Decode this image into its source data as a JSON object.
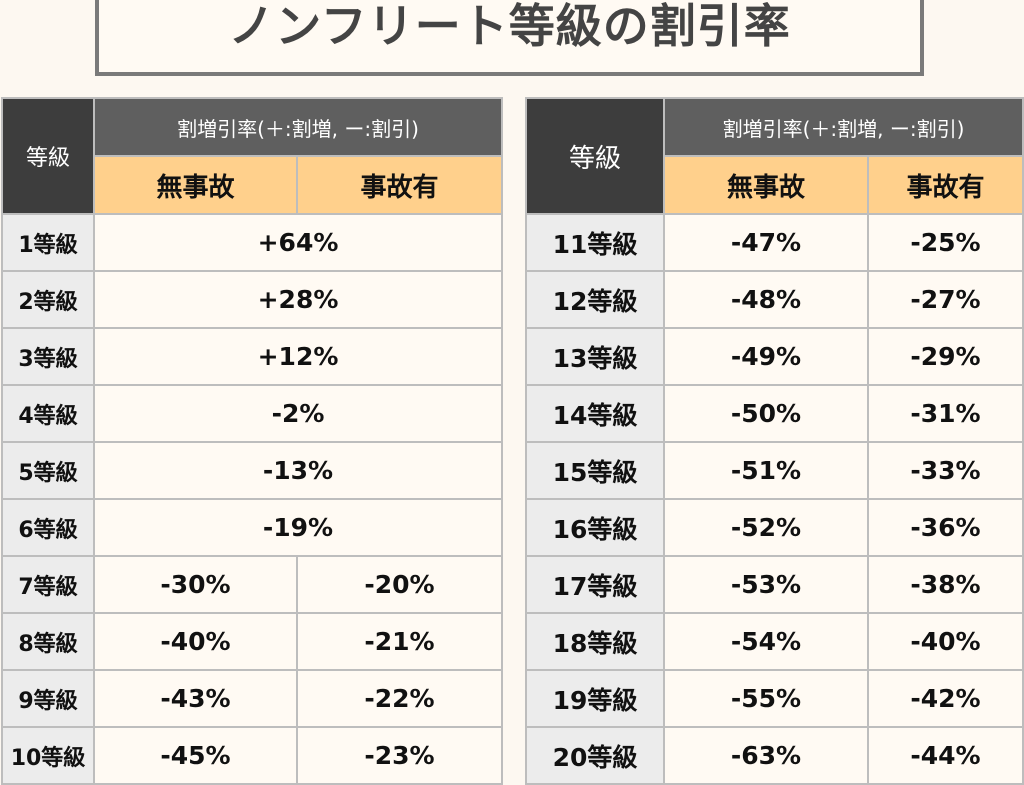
{
  "title": "ノンフリート等級の割引率",
  "header": {
    "grade": "等級",
    "rate": "割増引率(＋:割増, ー:割引)",
    "no_accident": "無事故",
    "accident": "事故有"
  },
  "left_table": [
    {
      "grade": "1等級",
      "rate": "+64%"
    },
    {
      "grade": "2等級",
      "rate": "+28%"
    },
    {
      "grade": "3等級",
      "rate": "+12%"
    },
    {
      "grade": "4等級",
      "rate": "-2%"
    },
    {
      "grade": "5等級",
      "rate": "-13%"
    },
    {
      "grade": "6等級",
      "rate": "-19%"
    },
    {
      "grade": "7等級",
      "no_accident": "-30%",
      "accident": "-20%"
    },
    {
      "grade": "8等級",
      "no_accident": "-40%",
      "accident": "-21%"
    },
    {
      "grade": "9等級",
      "no_accident": "-43%",
      "accident": "-22%"
    },
    {
      "grade": "10等級",
      "no_accident": "-45%",
      "accident": "-23%"
    }
  ],
  "right_table": [
    {
      "grade": "11等級",
      "no_accident": "-47%",
      "accident": "-25%"
    },
    {
      "grade": "12等級",
      "no_accident": "-48%",
      "accident": "-27%"
    },
    {
      "grade": "13等級",
      "no_accident": "-49%",
      "accident": "-29%"
    },
    {
      "grade": "14等級",
      "no_accident": "-50%",
      "accident": "-31%"
    },
    {
      "grade": "15等級",
      "no_accident": "-51%",
      "accident": "-33%"
    },
    {
      "grade": "16等級",
      "no_accident": "-52%",
      "accident": "-36%"
    },
    {
      "grade": "17等級",
      "no_accident": "-53%",
      "accident": "-38%"
    },
    {
      "grade": "18等級",
      "no_accident": "-54%",
      "accident": "-40%"
    },
    {
      "grade": "19等級",
      "no_accident": "-55%",
      "accident": "-42%"
    },
    {
      "grade": "20等級",
      "no_accident": "-63%",
      "accident": "-44%"
    }
  ]
}
